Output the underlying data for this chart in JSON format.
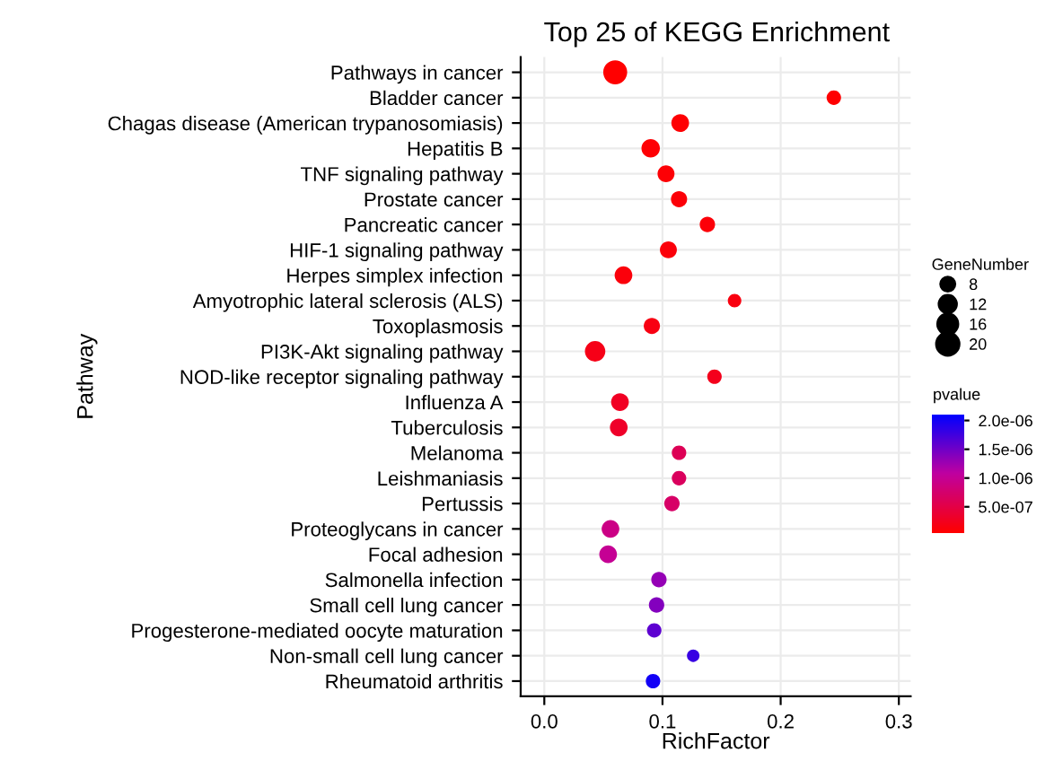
{
  "chart_data": {
    "type": "bubble",
    "title": "Top 25 of KEGG Enrichment",
    "xlabel": "RichFactor",
    "ylabel": "Pathway",
    "legend_title": "GeneNumber",
    "clabel": "pvalue",
    "orientation": "horizontal",
    "categories": [
      "Pathways in cancer",
      "Bladder cancer",
      "Chagas disease (American trypanosomiasis)",
      "Hepatitis B",
      "TNF signaling pathway",
      "Prostate cancer",
      "Pancreatic cancer",
      "HIF-1 signaling pathway",
      "Herpes simplex infection",
      "Amyotrophic lateral sclerosis (ALS)",
      "Toxoplasmosis",
      "PI3K-Akt signaling pathway",
      "NOD-like receptor signaling pathway",
      "Influenza A",
      "Tuberculosis",
      "Melanoma",
      "Leishmaniasis",
      "Pertussis",
      "Proteoglycans in cancer",
      "Focal adhesion",
      "Salmonella infection",
      "Small cell lung cancer",
      "Progesterone-mediated oocyte maturation",
      "Non-small cell lung cancer",
      "Rheumatoid arthritis"
    ],
    "values": [
      0.06,
      0.245,
      0.115,
      0.09,
      0.103,
      0.114,
      0.138,
      0.105,
      0.067,
      0.161,
      0.091,
      0.043,
      0.144,
      0.064,
      0.063,
      0.114,
      0.114,
      0.108,
      0.056,
      0.054,
      0.097,
      0.095,
      0.093,
      0.126,
      0.092
    ],
    "sizes": [
      22,
      8,
      12,
      13,
      11,
      10,
      9,
      11,
      12,
      7,
      10,
      16,
      8,
      12,
      12,
      8,
      8,
      9,
      12,
      12,
      9,
      9,
      8,
      6,
      8
    ],
    "size_legend": [
      8,
      12,
      16,
      20
    ],
    "cvalues": [
      5e-08,
      6e-08,
      7e-08,
      8e-08,
      9e-08,
      1e-07,
      1.1e-07,
      1.2e-07,
      1.3e-07,
      1.5e-07,
      1.7e-07,
      2e-07,
      2.3e-07,
      2.8e-07,
      3.2e-07,
      6e-07,
      6.5e-07,
      7e-07,
      9e-07,
      1e-06,
      1.3e-06,
      1.4e-06,
      1.6e-06,
      1.8e-06,
      2e-06
    ],
    "clim": [
      5e-08,
      2.1e-06
    ],
    "cticks": [
      {
        "value": 2e-06,
        "label": "2.0e-06"
      },
      {
        "value": 1.5e-06,
        "label": "1.5e-06"
      },
      {
        "value": 1e-06,
        "label": "1.0e-06"
      },
      {
        "value": 5e-07,
        "label": "5.0e-07"
      }
    ],
    "xlim": [
      -0.02,
      0.31
    ],
    "xticks": [
      {
        "value": 0,
        "label": "0.0"
      },
      0.1,
      0.2,
      0.3
    ],
    "grid": true
  }
}
